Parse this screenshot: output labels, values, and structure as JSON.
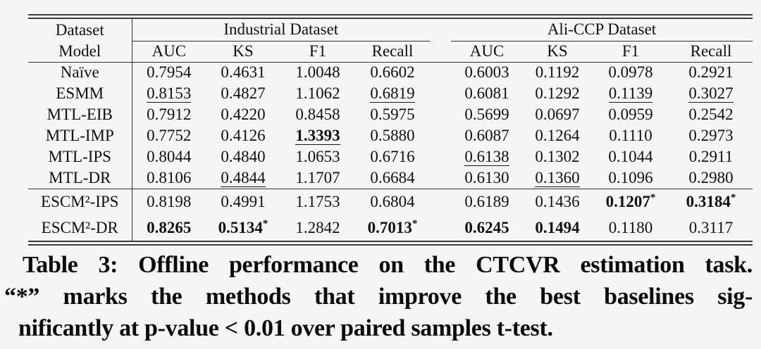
{
  "colors": {
    "background": "#f5f5f3",
    "text": "#111111",
    "rule": "#333333"
  },
  "table": {
    "corner": {
      "top": "Dataset",
      "bottom": "Model"
    },
    "groups": [
      {
        "label": "Industrial Dataset"
      },
      {
        "label": "Ali-CCP Dataset"
      }
    ],
    "metrics": [
      "AUC",
      "KS",
      "F1",
      "Recall"
    ],
    "rows": [
      {
        "model": "Naïve",
        "industrial": [
          {
            "v": "0.7954"
          },
          {
            "v": "0.4631"
          },
          {
            "v": "1.0048"
          },
          {
            "v": "0.6602"
          }
        ],
        "aliccp": [
          {
            "v": "0.6003"
          },
          {
            "v": "0.1192"
          },
          {
            "v": "0.0978"
          },
          {
            "v": "0.2921"
          }
        ]
      },
      {
        "model": "ESMM",
        "industrial": [
          {
            "v": "0.8153",
            "u": true
          },
          {
            "v": "0.4827"
          },
          {
            "v": "1.1062"
          },
          {
            "v": "0.6819",
            "u": true
          }
        ],
        "aliccp": [
          {
            "v": "0.6081"
          },
          {
            "v": "0.1292"
          },
          {
            "v": "0.1139",
            "u": true
          },
          {
            "v": "0.3027",
            "u": true
          }
        ]
      },
      {
        "model": "MTL-EIB",
        "industrial": [
          {
            "v": "0.7912"
          },
          {
            "v": "0.4220"
          },
          {
            "v": "0.8458"
          },
          {
            "v": "0.5975"
          }
        ],
        "aliccp": [
          {
            "v": "0.5699"
          },
          {
            "v": "0.0697"
          },
          {
            "v": "0.0959"
          },
          {
            "v": "0.2542"
          }
        ]
      },
      {
        "model": "MTL-IMP",
        "industrial": [
          {
            "v": "0.7752"
          },
          {
            "v": "0.4126"
          },
          {
            "v": "1.3393",
            "b": true,
            "u": true
          },
          {
            "v": "0.5880"
          }
        ],
        "aliccp": [
          {
            "v": "0.6087"
          },
          {
            "v": "0.1264"
          },
          {
            "v": "0.1110"
          },
          {
            "v": "0.2973"
          }
        ]
      },
      {
        "model": "MTL-IPS",
        "industrial": [
          {
            "v": "0.8044"
          },
          {
            "v": "0.4840"
          },
          {
            "v": "1.0653"
          },
          {
            "v": "0.6716"
          }
        ],
        "aliccp": [
          {
            "v": "0.6138",
            "u": true
          },
          {
            "v": "0.1302"
          },
          {
            "v": "0.1044"
          },
          {
            "v": "0.2911"
          }
        ]
      },
      {
        "model": "MTL-DR",
        "industrial": [
          {
            "v": "0.8106"
          },
          {
            "v": "0.4844",
            "u": true
          },
          {
            "v": "1.1707"
          },
          {
            "v": "0.6684"
          }
        ],
        "aliccp": [
          {
            "v": "0.6130"
          },
          {
            "v": "0.1360",
            "u": true
          },
          {
            "v": "0.1096"
          },
          {
            "v": "0.2980"
          }
        ]
      },
      {
        "model": "ESCM²-IPS",
        "group_start": true,
        "industrial": [
          {
            "v": "0.8198"
          },
          {
            "v": "0.4991"
          },
          {
            "v": "1.1753"
          },
          {
            "v": "0.6804"
          }
        ],
        "aliccp": [
          {
            "v": "0.6189"
          },
          {
            "v": "0.1436"
          },
          {
            "v": "0.1207",
            "b": true,
            "s": true
          },
          {
            "v": "0.3184",
            "b": true,
            "s": true
          }
        ]
      },
      {
        "model": "ESCM²-DR",
        "industrial": [
          {
            "v": "0.8265",
            "b": true
          },
          {
            "v": "0.5134",
            "b": true,
            "s": true
          },
          {
            "v": "1.2842"
          },
          {
            "v": "0.7013",
            "b": true,
            "s": true
          }
        ],
        "aliccp": [
          {
            "v": "0.6245",
            "b": true
          },
          {
            "v": "0.1494",
            "b": true
          },
          {
            "v": "0.1180"
          },
          {
            "v": "0.3117"
          }
        ]
      }
    ]
  },
  "caption": {
    "lines": [
      "Table 3: Offline performance on the CTCVR estimation task.",
      "“*” marks the methods that improve the best baselines sig-",
      "nificantly at p-value < 0.01 over paired samples t-test."
    ]
  }
}
